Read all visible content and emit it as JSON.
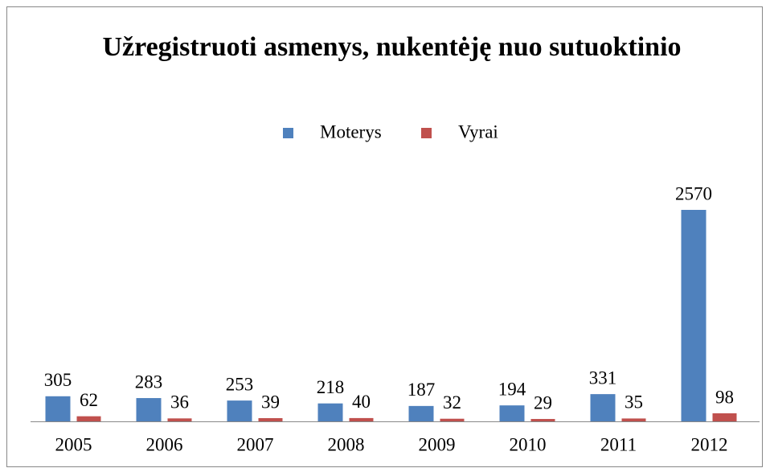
{
  "chart_data": {
    "type": "bar",
    "title": "Užregistruoti asmenys, nukentėję nuo sutuoktinio",
    "categories": [
      "2005",
      "2006",
      "2007",
      "2008",
      "2009",
      "2010",
      "2011",
      "2012"
    ],
    "series": [
      {
        "name": "Moterys",
        "color": "#4f81bd",
        "values": [
          305,
          283,
          253,
          218,
          187,
          194,
          331,
          2570
        ]
      },
      {
        "name": "Vyrai",
        "color": "#c0504d",
        "values": [
          62,
          36,
          39,
          40,
          32,
          29,
          35,
          98
        ]
      }
    ],
    "legend": "top"
  }
}
